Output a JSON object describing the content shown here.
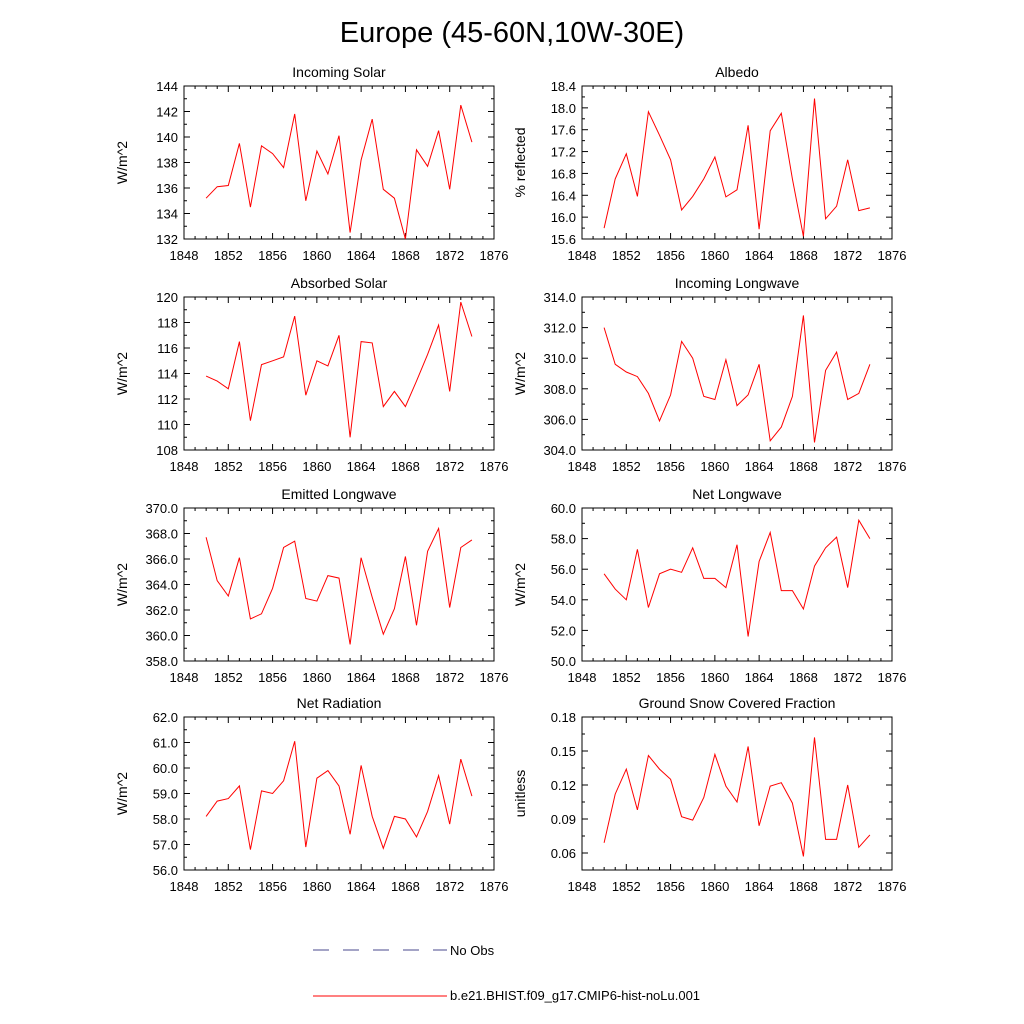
{
  "figure": {
    "title": "Europe (45-60N,10W-30E)"
  },
  "legend": {
    "entries": [
      {
        "label": "No Obs",
        "color": "#4a4a8c",
        "style": "dashed"
      },
      {
        "label": "b.e21.BHIST.f09_g17.CMIP6-hist-noLu.001",
        "color": "#ff0000",
        "style": "solid"
      }
    ]
  },
  "chart_data": [
    {
      "type": "line",
      "title": "Incoming Solar",
      "xlabel": "",
      "ylabel": "W/m^2",
      "xlim": [
        1848,
        1876
      ],
      "ylim": [
        132,
        144
      ],
      "x_ticks": [
        "1848",
        "1852",
        "1856",
        "1860",
        "1864",
        "1868",
        "1872",
        "1876"
      ],
      "y_ticks": [
        "132",
        "134",
        "136",
        "138",
        "140",
        "142",
        "144"
      ],
      "grid": false,
      "x": [
        1850,
        1851,
        1852,
        1853,
        1854,
        1855,
        1856,
        1857,
        1858,
        1859,
        1860,
        1861,
        1862,
        1863,
        1864,
        1865,
        1866,
        1867,
        1868,
        1869,
        1870,
        1871,
        1872,
        1873,
        1874
      ],
      "series": [
        {
          "color": "#ff0000",
          "values": [
            135.2,
            136.1,
            136.2,
            139.5,
            134.5,
            139.3,
            138.7,
            137.6,
            141.8,
            135.0,
            138.9,
            137.1,
            140.1,
            132.5,
            138.2,
            141.4,
            135.9,
            135.2,
            132.0,
            139.0,
            137.7,
            140.5,
            135.9,
            142.5,
            139.6
          ]
        }
      ]
    },
    {
      "type": "line",
      "title": "Albedo",
      "xlabel": "",
      "ylabel": "% reflected",
      "xlim": [
        1848,
        1876
      ],
      "ylim": [
        15.6,
        18.4
      ],
      "x_ticks": [
        "1848",
        "1852",
        "1856",
        "1860",
        "1864",
        "1868",
        "1872",
        "1876"
      ],
      "y_ticks": [
        "15.6",
        "16.0",
        "16.4",
        "16.8",
        "17.2",
        "17.6",
        "18.0",
        "18.4"
      ],
      "grid": false,
      "x": [
        1850,
        1851,
        1852,
        1853,
        1854,
        1855,
        1856,
        1857,
        1858,
        1859,
        1860,
        1861,
        1862,
        1863,
        1864,
        1865,
        1866,
        1867,
        1868,
        1869,
        1870,
        1871,
        1872,
        1873,
        1874
      ],
      "series": [
        {
          "color": "#ff0000",
          "values": [
            15.8,
            16.7,
            17.16,
            16.38,
            17.93,
            17.5,
            17.05,
            16.13,
            16.38,
            16.7,
            17.1,
            16.37,
            16.5,
            17.68,
            15.78,
            17.58,
            17.9,
            16.7,
            15.65,
            18.17,
            15.97,
            16.2,
            17.05,
            16.12,
            16.17
          ]
        }
      ]
    },
    {
      "type": "line",
      "title": "Absorbed Solar",
      "xlabel": "",
      "ylabel": "W/m^2",
      "xlim": [
        1848,
        1876
      ],
      "ylim": [
        108,
        120
      ],
      "x_ticks": [
        "1848",
        "1852",
        "1856",
        "1860",
        "1864",
        "1868",
        "1872",
        "1876"
      ],
      "y_ticks": [
        "108",
        "110",
        "112",
        "114",
        "116",
        "118",
        "120"
      ],
      "grid": false,
      "x": [
        1850,
        1851,
        1852,
        1853,
        1854,
        1855,
        1856,
        1857,
        1858,
        1859,
        1860,
        1861,
        1862,
        1863,
        1864,
        1865,
        1866,
        1867,
        1868,
        1869,
        1870,
        1871,
        1872,
        1873,
        1874
      ],
      "series": [
        {
          "color": "#ff0000",
          "values": [
            113.8,
            113.4,
            112.8,
            116.5,
            110.3,
            114.7,
            115.0,
            115.3,
            118.5,
            112.3,
            115.0,
            114.6,
            117.0,
            109.0,
            116.5,
            116.4,
            111.4,
            112.6,
            111.4,
            113.4,
            115.5,
            117.8,
            112.6,
            119.6,
            116.9
          ]
        }
      ]
    },
    {
      "type": "line",
      "title": "Incoming Longwave",
      "xlabel": "",
      "ylabel": "W/m^2",
      "xlim": [
        1848,
        1876
      ],
      "ylim": [
        304.0,
        314.0
      ],
      "x_ticks": [
        "1848",
        "1852",
        "1856",
        "1860",
        "1864",
        "1868",
        "1872",
        "1876"
      ],
      "y_ticks": [
        "304.0",
        "306.0",
        "308.0",
        "310.0",
        "312.0",
        "314.0"
      ],
      "grid": false,
      "x": [
        1850,
        1851,
        1852,
        1853,
        1854,
        1855,
        1856,
        1857,
        1858,
        1859,
        1860,
        1861,
        1862,
        1863,
        1864,
        1865,
        1866,
        1867,
        1868,
        1869,
        1870,
        1871,
        1872,
        1873,
        1874
      ],
      "series": [
        {
          "color": "#ff0000",
          "values": [
            312.0,
            309.6,
            309.1,
            308.8,
            307.7,
            305.9,
            307.6,
            311.1,
            310.0,
            307.5,
            307.3,
            309.9,
            306.9,
            307.6,
            309.6,
            304.6,
            305.5,
            307.5,
            312.8,
            304.5,
            309.2,
            310.4,
            307.3,
            307.7,
            309.6
          ]
        }
      ]
    },
    {
      "type": "line",
      "title": "Emitted Longwave",
      "xlabel": "",
      "ylabel": "W/m^2",
      "xlim": [
        1848,
        1876
      ],
      "ylim": [
        358.0,
        370.0
      ],
      "x_ticks": [
        "1848",
        "1852",
        "1856",
        "1860",
        "1864",
        "1868",
        "1872",
        "1876"
      ],
      "y_ticks": [
        "358.0",
        "360.0",
        "362.0",
        "364.0",
        "366.0",
        "368.0",
        "370.0"
      ],
      "grid": false,
      "x": [
        1850,
        1851,
        1852,
        1853,
        1854,
        1855,
        1856,
        1857,
        1858,
        1859,
        1860,
        1861,
        1862,
        1863,
        1864,
        1865,
        1866,
        1867,
        1868,
        1869,
        1870,
        1871,
        1872,
        1873,
        1874
      ],
      "series": [
        {
          "color": "#ff0000",
          "values": [
            367.7,
            364.3,
            363.1,
            366.1,
            361.3,
            361.7,
            363.7,
            366.9,
            367.4,
            362.9,
            362.7,
            364.7,
            364.5,
            359.3,
            366.1,
            363.0,
            360.1,
            362.1,
            366.2,
            360.8,
            366.6,
            368.4,
            362.2,
            366.9,
            367.5
          ]
        }
      ]
    },
    {
      "type": "line",
      "title": "Net Longwave",
      "xlabel": "",
      "ylabel": "W/m^2",
      "xlim": [
        1848,
        1876
      ],
      "ylim": [
        50.0,
        60.0
      ],
      "x_ticks": [
        "1848",
        "1852",
        "1856",
        "1860",
        "1864",
        "1868",
        "1872",
        "1876"
      ],
      "y_ticks": [
        "50.0",
        "52.0",
        "54.0",
        "56.0",
        "58.0",
        "60.0"
      ],
      "grid": false,
      "x": [
        1850,
        1851,
        1852,
        1853,
        1854,
        1855,
        1856,
        1857,
        1858,
        1859,
        1860,
        1861,
        1862,
        1863,
        1864,
        1865,
        1866,
        1867,
        1868,
        1869,
        1870,
        1871,
        1872,
        1873,
        1874
      ],
      "series": [
        {
          "color": "#ff0000",
          "values": [
            55.7,
            54.7,
            54.0,
            57.3,
            53.5,
            55.7,
            56.0,
            55.8,
            57.4,
            55.4,
            55.4,
            54.8,
            57.6,
            51.6,
            56.5,
            58.4,
            54.6,
            54.6,
            53.4,
            56.2,
            57.4,
            58.1,
            54.8,
            59.2,
            58.0
          ]
        }
      ]
    },
    {
      "type": "line",
      "title": "Net Radiation",
      "xlabel": "",
      "ylabel": "W/m^2",
      "xlim": [
        1848,
        1876
      ],
      "ylim": [
        56.0,
        62.0
      ],
      "x_ticks": [
        "1848",
        "1852",
        "1856",
        "1860",
        "1864",
        "1868",
        "1872",
        "1876"
      ],
      "y_ticks": [
        "56.0",
        "57.0",
        "58.0",
        "59.0",
        "60.0",
        "61.0",
        "62.0"
      ],
      "grid": false,
      "x": [
        1850,
        1851,
        1852,
        1853,
        1854,
        1855,
        1856,
        1857,
        1858,
        1859,
        1860,
        1861,
        1862,
        1863,
        1864,
        1865,
        1866,
        1867,
        1868,
        1869,
        1870,
        1871,
        1872,
        1873,
        1874
      ],
      "series": [
        {
          "color": "#ff0000",
          "values": [
            58.1,
            58.7,
            58.8,
            59.3,
            56.8,
            59.1,
            59.0,
            59.5,
            61.05,
            56.9,
            59.6,
            59.9,
            59.3,
            57.4,
            60.1,
            58.1,
            56.85,
            58.1,
            58.0,
            57.3,
            58.3,
            59.7,
            57.8,
            60.35,
            58.9
          ]
        }
      ]
    },
    {
      "type": "line",
      "title": "Ground Snow Covered Fraction",
      "xlabel": "",
      "ylabel": "unitless",
      "xlim": [
        1848,
        1876
      ],
      "ylim": [
        0.045,
        0.18
      ],
      "x_ticks": [
        "1848",
        "1852",
        "1856",
        "1860",
        "1864",
        "1868",
        "1872",
        "1876"
      ],
      "y_ticks": [
        "0.06",
        "0.09",
        "0.12",
        "0.15",
        "0.18"
      ],
      "grid": false,
      "x": [
        1850,
        1851,
        1852,
        1853,
        1854,
        1855,
        1856,
        1857,
        1858,
        1859,
        1860,
        1861,
        1862,
        1863,
        1864,
        1865,
        1866,
        1867,
        1868,
        1869,
        1870,
        1871,
        1872,
        1873,
        1874
      ],
      "series": [
        {
          "color": "#ff0000",
          "values": [
            0.069,
            0.112,
            0.134,
            0.098,
            0.146,
            0.134,
            0.125,
            0.092,
            0.089,
            0.109,
            0.147,
            0.119,
            0.105,
            0.154,
            0.084,
            0.119,
            0.122,
            0.104,
            0.057,
            0.162,
            0.072,
            0.072,
            0.12,
            0.065,
            0.076
          ]
        }
      ]
    }
  ]
}
